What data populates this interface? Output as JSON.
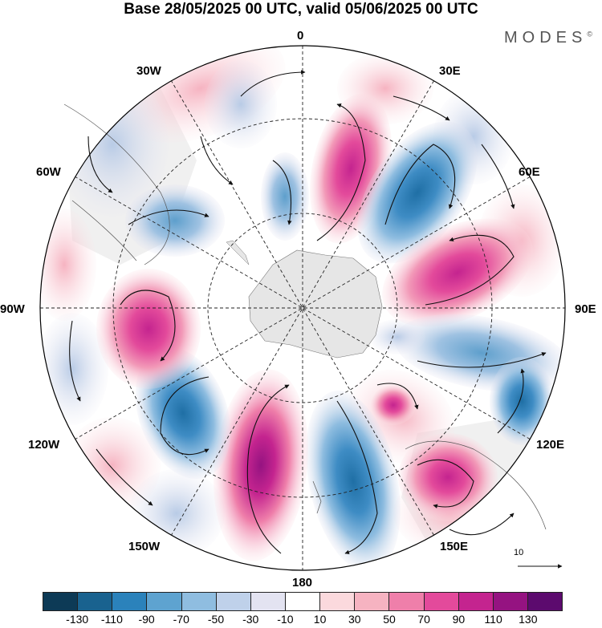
{
  "title": "Base 28/05/2025 00 UTC, valid 05/06/2025 00 UTC",
  "logo": "MODES",
  "logo_mark": "©",
  "longitude_labels": {
    "lon_0": "0",
    "lon_30e": "30E",
    "lon_60e": "60E",
    "lon_90e": "90E",
    "lon_120e": "120E",
    "lon_150e": "150E",
    "lon_180": "180",
    "lon_150w": "150W",
    "lon_120w": "120W",
    "lon_90w": "90W",
    "lon_60w": "60W",
    "lon_30w": "30W"
  },
  "vector_scale_label": "10",
  "colorbar": {
    "colors": [
      "#0d3a56",
      "#19628f",
      "#2b82bb",
      "#5ea3d0",
      "#8fbde0",
      "#bfd1ea",
      "#e3e3f1",
      "#ffffff",
      "#fbd9dd",
      "#f6b3c1",
      "#ef7faa",
      "#e34a9b",
      "#c4248f",
      "#951381",
      "#5c0a6e"
    ],
    "ticks": [
      "-130",
      "-110",
      "-90",
      "-70",
      "-50",
      "-30",
      "-10",
      "10",
      "30",
      "50",
      "70",
      "90",
      "110",
      "130"
    ]
  },
  "anomaly_palette": {
    "neg_strong": "#1f6fa5",
    "neg_mid": "#5ea3d0",
    "neg_weak": "#c9d5ea",
    "pos_weak": "#f8c9d4",
    "pos_mid": "#ef7faa",
    "pos_strong": "#c4248f"
  },
  "map_features": {
    "projection": "south-polar-stereographic",
    "land_color": "#e6e6e6",
    "continent": "antarctica-icon",
    "grid": "dashed-lat-lon"
  }
}
